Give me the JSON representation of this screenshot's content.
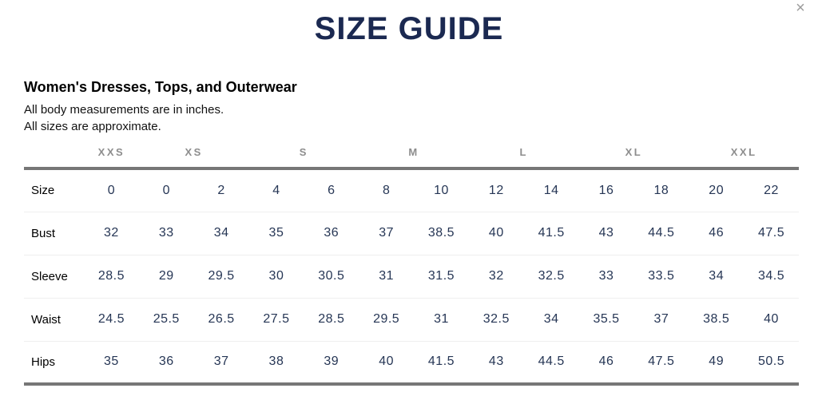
{
  "modal": {
    "title": "SIZE GUIDE",
    "close_icon": "×"
  },
  "section": {
    "heading": "Women's Dresses, Tops, and Outerwear",
    "note_line_1": "All body measurements are in inches.",
    "note_line_2": "All sizes are approximate."
  },
  "table": {
    "size_groups": [
      {
        "label": "XXS",
        "span": 1
      },
      {
        "label": "XS",
        "span": 2
      },
      {
        "label": "S",
        "span": 2
      },
      {
        "label": "M",
        "span": 2
      },
      {
        "label": "L",
        "span": 2
      },
      {
        "label": "XL",
        "span": 2
      },
      {
        "label": "XXL",
        "span": 2
      }
    ],
    "rows": [
      {
        "label": "Size",
        "values": [
          "0",
          "0",
          "2",
          "4",
          "6",
          "8",
          "10",
          "12",
          "14",
          "16",
          "18",
          "20",
          "22"
        ]
      },
      {
        "label": "Bust",
        "values": [
          "32",
          "33",
          "34",
          "35",
          "36",
          "37",
          "38.5",
          "40",
          "41.5",
          "43",
          "44.5",
          "46",
          "47.5"
        ]
      },
      {
        "label": "Sleeve",
        "values": [
          "28.5",
          "29",
          "29.5",
          "30",
          "30.5",
          "31",
          "31.5",
          "32",
          "32.5",
          "33",
          "33.5",
          "34",
          "34.5"
        ]
      },
      {
        "label": "Waist",
        "values": [
          "24.5",
          "25.5",
          "26.5",
          "27.5",
          "28.5",
          "29.5",
          "31",
          "32.5",
          "34",
          "35.5",
          "37",
          "38.5",
          "40"
        ]
      },
      {
        "label": "Hips",
        "values": [
          "35",
          "36",
          "37",
          "38",
          "39",
          "40",
          "41.5",
          "43",
          "44.5",
          "46",
          "47.5",
          "49",
          "50.5"
        ]
      }
    ]
  },
  "colors": {
    "title_navy": "#1b2951",
    "value_navy": "#263655",
    "group_gray": "#8d8d8d",
    "rule_gray": "#767676",
    "separator_gray": "#efefef",
    "close_gray": "#9c9c9c"
  }
}
